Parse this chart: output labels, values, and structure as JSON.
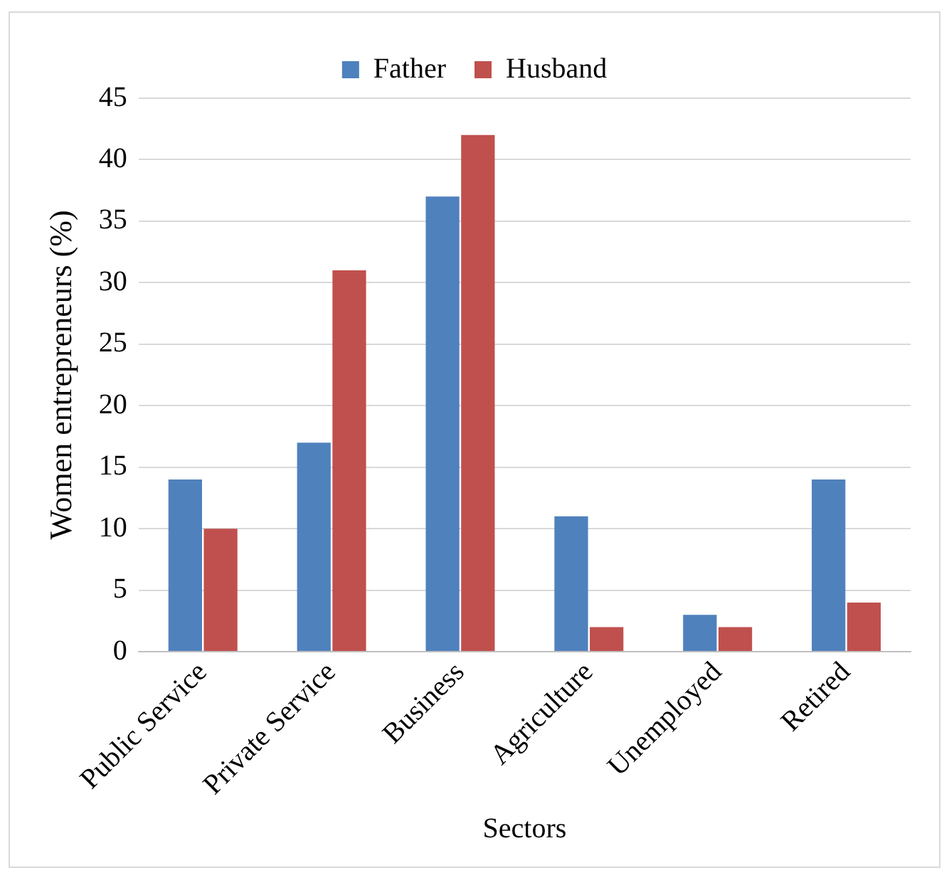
{
  "chart_data": {
    "type": "bar",
    "xlabel": "Sectors",
    "ylabel": "Women entrepreneurs (%)",
    "categories": [
      "Public Service",
      "Private Service",
      "Business",
      "Agriculture",
      "Unemployed",
      "Retired"
    ],
    "series": [
      {
        "name": "Father",
        "color": "#4f81bd",
        "values": [
          14,
          17,
          37,
          11,
          3,
          14
        ]
      },
      {
        "name": "Husband",
        "color": "#c0504d",
        "values": [
          10,
          31,
          42,
          2,
          2,
          4
        ]
      }
    ],
    "ylim": [
      0,
      45
    ],
    "yticks": [
      0,
      5,
      10,
      15,
      20,
      25,
      30,
      35,
      40,
      45
    ],
    "grid": "y",
    "legend": "top"
  }
}
